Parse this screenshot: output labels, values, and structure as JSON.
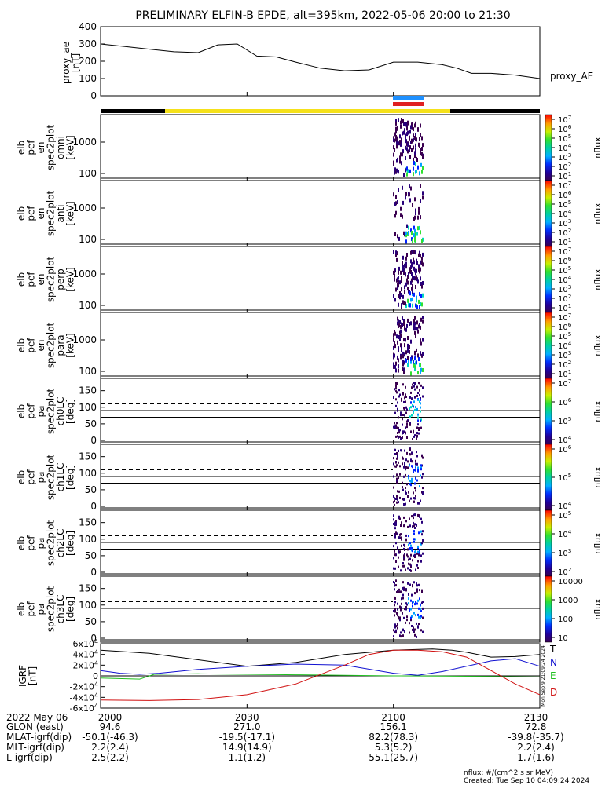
{
  "title": "PRELIMINARY ELFIN-B EPDE, alt=395km, 2022-05-06 20:00 to 21:30",
  "colors": {
    "bar_black": "#000000",
    "bar_yellow": "#f5e11a",
    "sci_blue": "#1e90ff",
    "sci_red": "#e02020",
    "igrf_T": "#000000",
    "igrf_N": "#1010d0",
    "igrf_E": "#20c020",
    "igrf_D": "#d01010"
  },
  "chart_data": [
    {
      "id": "proxy_ae",
      "type": "line",
      "ylabel_lines": [
        "proxy_ae",
        "[nT]"
      ],
      "ylim": [
        0,
        400
      ],
      "yticks": [
        "0",
        "100",
        "200",
        "300",
        "400"
      ],
      "xlim": [
        0,
        90
      ],
      "legend": "proxy_AE",
      "x": [
        0,
        5,
        10,
        15,
        20,
        24,
        28,
        32,
        36,
        40,
        45,
        50,
        55,
        60,
        65,
        70,
        73,
        76,
        80,
        85,
        90
      ],
      "y": [
        300,
        285,
        270,
        255,
        250,
        295,
        300,
        230,
        225,
        195,
        160,
        145,
        150,
        195,
        195,
        180,
        160,
        130,
        130,
        120,
        100
      ]
    },
    {
      "id": "spec_en_omni",
      "type": "heatmap",
      "ylabel_lines": [
        "elb",
        "pef",
        "en",
        "spec2plot",
        "omni",
        "[keV]"
      ],
      "yticks": [
        "100",
        "1000"
      ],
      "zlabel": "nflux",
      "ztick_labels": [
        "10^1",
        "10^2",
        "10^3",
        "10^4",
        "10^5",
        "10^6",
        "10^7"
      ]
    },
    {
      "id": "spec_en_anti",
      "type": "heatmap",
      "ylabel_lines": [
        "elb",
        "pef",
        "en",
        "spec2plot",
        "anti",
        "[keV]"
      ],
      "yticks": [
        "100",
        "1000"
      ],
      "zlabel": "nflux",
      "ztick_labels": [
        "10^1",
        "10^2",
        "10^3",
        "10^4",
        "10^5",
        "10^6",
        "10^7"
      ]
    },
    {
      "id": "spec_en_perp",
      "type": "heatmap",
      "ylabel_lines": [
        "elb",
        "pef",
        "en",
        "spec2plot",
        "perp",
        "[keV]"
      ],
      "yticks": [
        "100",
        "1000"
      ],
      "zlabel": "nflux",
      "ztick_labels": [
        "10^1",
        "10^2",
        "10^3",
        "10^4",
        "10^5",
        "10^6",
        "10^7"
      ]
    },
    {
      "id": "spec_en_para",
      "type": "heatmap",
      "ylabel_lines": [
        "elb",
        "pef",
        "en",
        "spec2plot",
        "para",
        "[keV]"
      ],
      "yticks": [
        "100",
        "1000"
      ],
      "zlabel": "nflux",
      "ztick_labels": [
        "10^1",
        "10^2",
        "10^3",
        "10^4",
        "10^5",
        "10^6",
        "10^7"
      ]
    },
    {
      "id": "spec_pa_ch0",
      "type": "heatmap",
      "ylabel_lines": [
        "elb",
        "pef",
        "pa",
        "spec2plot",
        "ch0LC",
        "[deg]"
      ],
      "yticks": [
        "0",
        "50",
        "100",
        "150"
      ],
      "zlabel": "nflux",
      "ztick_labels": [
        "10^4",
        "10^5",
        "10^6",
        "10^7"
      ]
    },
    {
      "id": "spec_pa_ch1",
      "type": "heatmap",
      "ylabel_lines": [
        "elb",
        "pef",
        "pa",
        "spec2plot",
        "ch1LC",
        "[deg]"
      ],
      "yticks": [
        "0",
        "50",
        "100",
        "150"
      ],
      "zlabel": "nflux",
      "ztick_labels": [
        "10^4",
        "10^5",
        "10^6"
      ]
    },
    {
      "id": "spec_pa_ch2",
      "type": "heatmap",
      "ylabel_lines": [
        "elb",
        "pef",
        "pa",
        "spec2plot",
        "ch2LC",
        "[deg]"
      ],
      "yticks": [
        "0",
        "50",
        "100",
        "150"
      ],
      "zlabel": "nflux",
      "ztick_labels": [
        "10^2",
        "10^3",
        "10^4",
        "10^5"
      ]
    },
    {
      "id": "spec_pa_ch3",
      "type": "heatmap",
      "ylabel_lines": [
        "elb",
        "pef",
        "pa",
        "spec2plot",
        "ch3LC",
        "[deg]"
      ],
      "yticks": [
        "0",
        "50",
        "100",
        "150"
      ],
      "zlabel": "nflux",
      "ztick_labels": [
        "10",
        "100",
        "1000",
        "10000"
      ]
    },
    {
      "id": "igrf",
      "type": "line",
      "ylabel_lines": [
        "IGRF",
        "[nT]"
      ],
      "ylim": [
        -60000,
        60000
      ],
      "yticks": [
        "-6x10^4",
        "-4x10^4",
        "-2x10^4",
        "0",
        "2x10^4",
        "4x10^4",
        "6x10^4"
      ],
      "xlim": [
        0,
        90
      ],
      "side_text": "Mon Sep 9 21:09:24 2024",
      "series": [
        {
          "name": "T",
          "x": [
            0,
            10,
            20,
            30,
            40,
            50,
            60,
            68,
            72,
            75,
            80,
            85,
            90
          ],
          "y": [
            48000,
            42000,
            30000,
            18000,
            25000,
            40000,
            48000,
            50000,
            48000,
            44000,
            35000,
            36000,
            40000
          ]
        },
        {
          "name": "N",
          "x": [
            0,
            4,
            8,
            12,
            20,
            30,
            40,
            50,
            60,
            65,
            70,
            80,
            85,
            90
          ],
          "y": [
            10000,
            5000,
            3000,
            5000,
            12000,
            18000,
            22000,
            20000,
            5000,
            1000,
            8000,
            28000,
            32000,
            18000
          ]
        },
        {
          "name": "E",
          "x": [
            0,
            8,
            11,
            20,
            30,
            40,
            50,
            60,
            70,
            80,
            90
          ],
          "y": [
            -4000,
            -6000,
            3000,
            4000,
            3000,
            2000,
            1000,
            0,
            -500,
            -1000,
            -2000
          ]
        },
        {
          "name": "D",
          "x": [
            0,
            10,
            20,
            30,
            40,
            50,
            55,
            60,
            65,
            70,
            75,
            80,
            85,
            90
          ],
          "y": [
            -45000,
            -46000,
            -44000,
            -35000,
            -15000,
            20000,
            40000,
            48000,
            48000,
            45000,
            35000,
            10000,
            -15000,
            -35000
          ]
        }
      ]
    }
  ],
  "xaxis": {
    "tick_labels": [
      "2000",
      "2030",
      "2100",
      "2130"
    ],
    "rows": [
      {
        "label": "2022 May 06",
        "values": [
          "2000",
          "2030",
          "2100",
          "2130"
        ]
      },
      {
        "label": "GLON (east)",
        "values": [
          "94.6",
          "271.0",
          "156.1",
          "72.8"
        ]
      },
      {
        "label": "MLAT-igrf(dip)",
        "values": [
          "-50.1(-46.3)",
          "-19.5(-17.1)",
          "82.2(78.3)",
          "-39.8(-35.7)"
        ]
      },
      {
        "label": "MLT-igrf(dip)",
        "values": [
          "2.2(2.4)",
          "14.9(14.9)",
          "5.3(5.2)",
          "2.2(2.4)"
        ]
      },
      {
        "label": "L-igrf(dip)",
        "values": [
          "2.5(2.2)",
          "1.1(1.2)",
          "55.1(25.7)",
          "1.7(1.6)"
        ]
      }
    ]
  },
  "footer": {
    "units": "nflux: #/(cm^2 s sr MeV)",
    "created": "Created: Tue Sep 10 04:09:24 2024"
  }
}
